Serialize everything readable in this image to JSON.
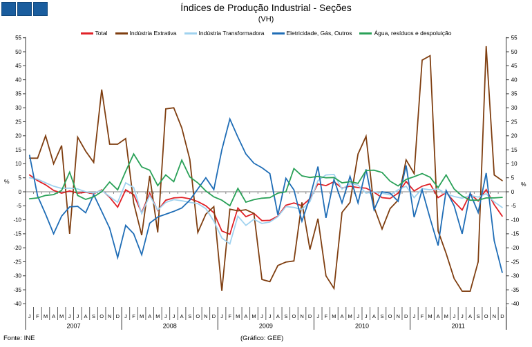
{
  "header": {
    "title": "Índices de Produção Industrial - Seções",
    "subtitle": "(VH)"
  },
  "footer": {
    "source": "Fonte: INE",
    "credit": "(Gráfico: GEE)"
  },
  "logo": {
    "color": "#1a5d9e",
    "border": "#12497e",
    "squares": 3
  },
  "axis": {
    "unit_label_left": "%",
    "unit_label_right": "%",
    "line_color": "#333333",
    "zero_line_color": "#808080",
    "tick_label_color": "#000000"
  },
  "chart_data": {
    "type": "line",
    "title": "Índices de Produção Industrial - Seções",
    "subtitle": "(VH)",
    "ylabel": "%",
    "ylim": [
      -40,
      55
    ],
    "y_tick_step": 5,
    "grid": "zero-line-only",
    "legend_position": "top",
    "x": {
      "years": [
        "2007",
        "2008",
        "2009",
        "2010",
        "2011"
      ],
      "month_letters": [
        "J",
        "F",
        "M",
        "A",
        "M",
        "J",
        "J",
        "A",
        "S",
        "O",
        "N",
        "D"
      ]
    },
    "series": [
      {
        "id": "total",
        "name": "Total",
        "color": "#e02127",
        "values": [
          6,
          4,
          2.5,
          0.5,
          -0.5,
          0.3,
          -0.5,
          -0.2,
          -0.7,
          0.7,
          -2,
          -5.5,
          0.7,
          -1,
          -7.5,
          -0.5,
          -6.7,
          -3,
          -2.2,
          -2,
          -2.5,
          -3.5,
          -5,
          -7.5,
          -14,
          -15.2,
          -5.8,
          -8.9,
          -7.7,
          -10.3,
          -10.2,
          -8.7,
          -4.8,
          -4,
          -5,
          -2.5,
          2.8,
          2.2,
          3.6,
          1.3,
          2,
          1.5,
          1.3,
          -0.2,
          -2.1,
          -2.4,
          -0.5,
          3.7,
          0.3,
          2,
          2.8,
          -2.1,
          -0.3,
          -3.5,
          -6.5,
          -0.7,
          -3.3,
          0.8,
          -4.6,
          -8.7
        ]
      },
      {
        "id": "industria-extrativa",
        "name": "Indústria Extrativa",
        "color": "#7f3e10",
        "values": [
          12,
          12,
          20,
          10,
          16.5,
          -15,
          19.5,
          14.5,
          10.5,
          36.5,
          17,
          17,
          19,
          -4,
          -15.5,
          5.7,
          -14.5,
          29.6,
          30,
          22.8,
          11.6,
          -14.5,
          -8,
          -5.3,
          -35.4,
          -6.2,
          -6.8,
          -6.4,
          -7.7,
          -31.3,
          -32.1,
          -26.3,
          -25.1,
          -24.7,
          -3.8,
          -20.6,
          -9.6,
          -30,
          -34.5,
          -7.4,
          -3.8,
          13.5,
          19.8,
          -5.5,
          -13.3,
          -6,
          -3,
          11.4,
          6.5,
          47,
          48.6,
          -14,
          -22,
          -31,
          -35.5,
          -35.5,
          -25,
          52,
          6,
          4
        ]
      },
      {
        "id": "industria-transformadora",
        "name": "Indústria Transformadora",
        "color": "#a0d2ef",
        "values": [
          5,
          4.5,
          3.2,
          2,
          1.2,
          1.3,
          1,
          0,
          -0.5,
          0.5,
          -1.7,
          -3.8,
          3.2,
          1.5,
          -7.8,
          -1.3,
          -6.5,
          -3.8,
          -2.8,
          -3.2,
          -3.8,
          -4.2,
          -6,
          -10.5,
          -16.5,
          -18.6,
          -8.7,
          -12,
          -9.8,
          -11.3,
          -10.8,
          -8.9,
          -5.3,
          -5.6,
          -6.3,
          -3.5,
          4,
          6,
          6.2,
          1,
          2.9,
          2.4,
          -0.5,
          0,
          -0.5,
          -1.1,
          0.7,
          2,
          -2.1,
          1.1,
          0.7,
          1,
          -0.7,
          -1.7,
          -2.3,
          -1.3,
          -1.9,
          -0.7,
          -3.6,
          -5.6
        ]
      },
      {
        "id": "eletricidade-gas-outros",
        "name": "Eletricidade, Gás, Outros",
        "color": "#1f6db6",
        "values": [
          13,
          -1.5,
          -8,
          -15,
          -8.7,
          -5.4,
          -5.2,
          -7.5,
          -1,
          -7,
          -13,
          -23.5,
          -12,
          -15,
          -22.5,
          -11.2,
          -9,
          -8,
          -7,
          -5.8,
          -3,
          1,
          5,
          0.8,
          15,
          26,
          19.5,
          13.5,
          10.2,
          8.6,
          6.5,
          -8.3,
          4.8,
          0.7,
          -10.5,
          -2,
          9,
          -9.3,
          4.4,
          -4,
          5.5,
          -4,
          8,
          -6.4,
          0,
          -0.5,
          -3.4,
          9.4,
          -9.1,
          0.7,
          -9.5,
          -19.2,
          0.5,
          -5,
          -15,
          -0.5,
          -7.4,
          6.7,
          -17.5,
          -28.8
        ]
      },
      {
        "id": "agua-residuos-despoluicao",
        "name": "Água, resíduos e despoluição",
        "color": "#2aa158",
        "values": [
          -2.5,
          -2.2,
          -1.3,
          -1,
          0.5,
          7,
          -1.3,
          -2.7,
          -1.8,
          0,
          3.5,
          0.7,
          7.3,
          13.5,
          8.9,
          7.7,
          2.2,
          6,
          3.6,
          11.3,
          5.3,
          3.2,
          0.3,
          -1.8,
          -3,
          -5,
          1.2,
          -3.7,
          -2.8,
          -2.3,
          -2.1,
          -0.5,
          0,
          8.3,
          5.7,
          5.1,
          5.5,
          5,
          5.1,
          3.2,
          3.6,
          3,
          7.6,
          7.7,
          6.9,
          3.8,
          2.1,
          4.4,
          5.4,
          6.5,
          5.2,
          1.5,
          6,
          1,
          -1.5,
          -3,
          -3,
          -2.2,
          -2.2,
          -2
        ]
      }
    ]
  }
}
